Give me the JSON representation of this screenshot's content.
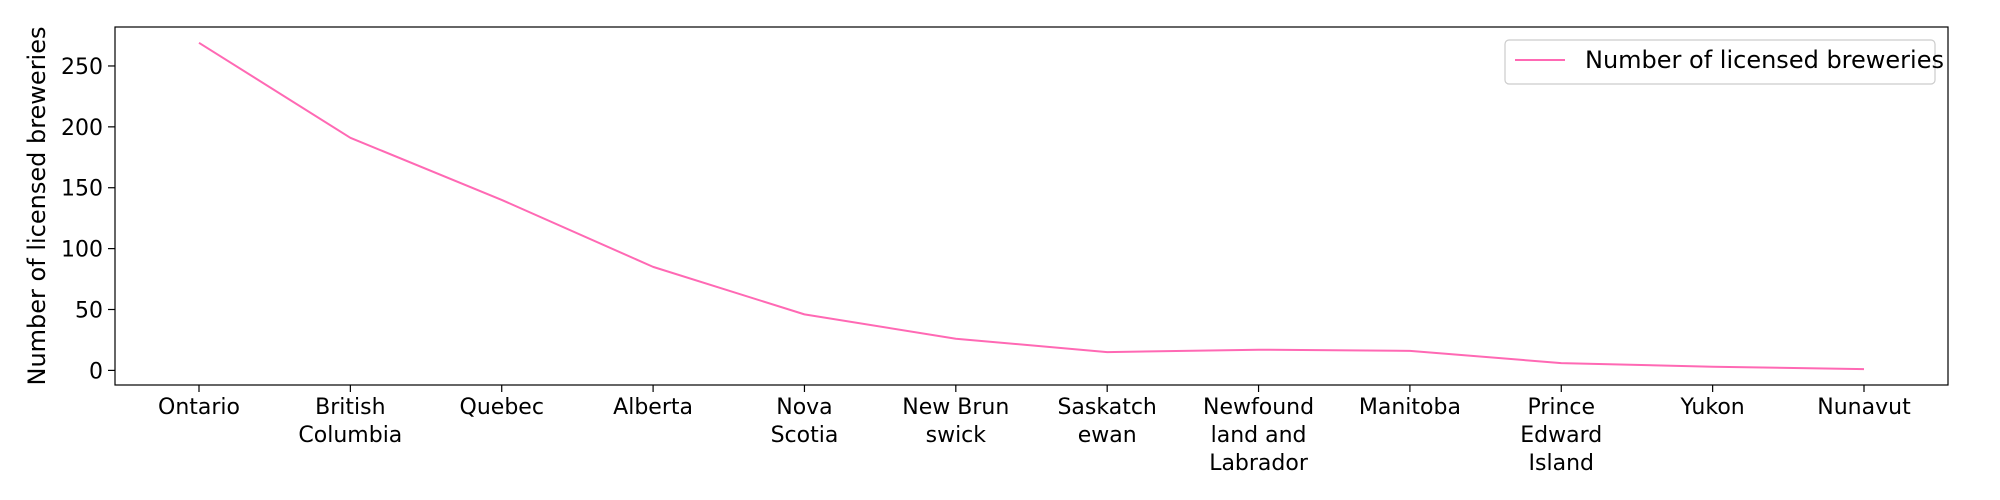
{
  "chart_data": {
    "type": "line",
    "categories": [
      "Ontario",
      "British\nColumbia",
      "Quebec",
      "Alberta",
      "Nova\nScotia",
      "New Brun\nswick",
      "Saskatch\newan",
      "Newfound\nland and\nLabrador",
      "Manitoba",
      "Prince\nEdward\nIsland",
      "Yukon",
      "Nunavut"
    ],
    "series": [
      {
        "name": "Number of licensed breweries",
        "values": [
          269,
          191,
          140,
          85,
          46,
          26,
          15,
          17,
          16,
          6,
          3,
          1
        ],
        "color": "#ff69b4"
      }
    ],
    "ylabel": "Number of licensed breweries",
    "xlabel": "",
    "ylim": [
      -12,
      282
    ],
    "yticks": [
      0,
      50,
      100,
      150,
      200,
      250
    ],
    "grid": false,
    "legend_position": "top-right"
  }
}
